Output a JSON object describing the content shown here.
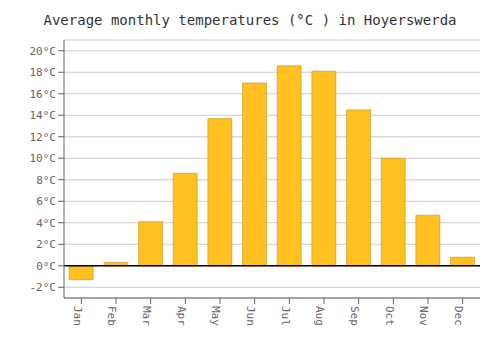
{
  "chart_data": {
    "type": "bar",
    "title": "Average monthly temperatures (°C ) in Hoyerswerda",
    "categories": [
      "Jan",
      "Feb",
      "Mar",
      "Apr",
      "May",
      "Jun",
      "Jul",
      "Aug",
      "Sep",
      "Oct",
      "Nov",
      "Dec"
    ],
    "values": [
      -1.3,
      0.3,
      4.1,
      8.6,
      13.7,
      17.0,
      18.6,
      18.1,
      14.5,
      10.0,
      4.7,
      0.8
    ],
    "color": "#FFC020",
    "ylim": [
      -3,
      21
    ],
    "yticks": [
      {
        "value": -2,
        "label": "-2°C"
      },
      {
        "value": 0,
        "label": "0°C"
      },
      {
        "value": 2,
        "label": "2°C"
      },
      {
        "value": 4,
        "label": "4°C"
      },
      {
        "value": 6,
        "label": "6°C"
      },
      {
        "value": 8,
        "label": "8°C"
      },
      {
        "value": 10,
        "label": "10°C"
      },
      {
        "value": 12,
        "label": "12°C"
      },
      {
        "value": 14,
        "label": "14°C"
      },
      {
        "value": 16,
        "label": "16°C"
      },
      {
        "value": 18,
        "label": "18°C"
      },
      {
        "value": 20,
        "label": "20°C"
      }
    ],
    "grid": true
  }
}
